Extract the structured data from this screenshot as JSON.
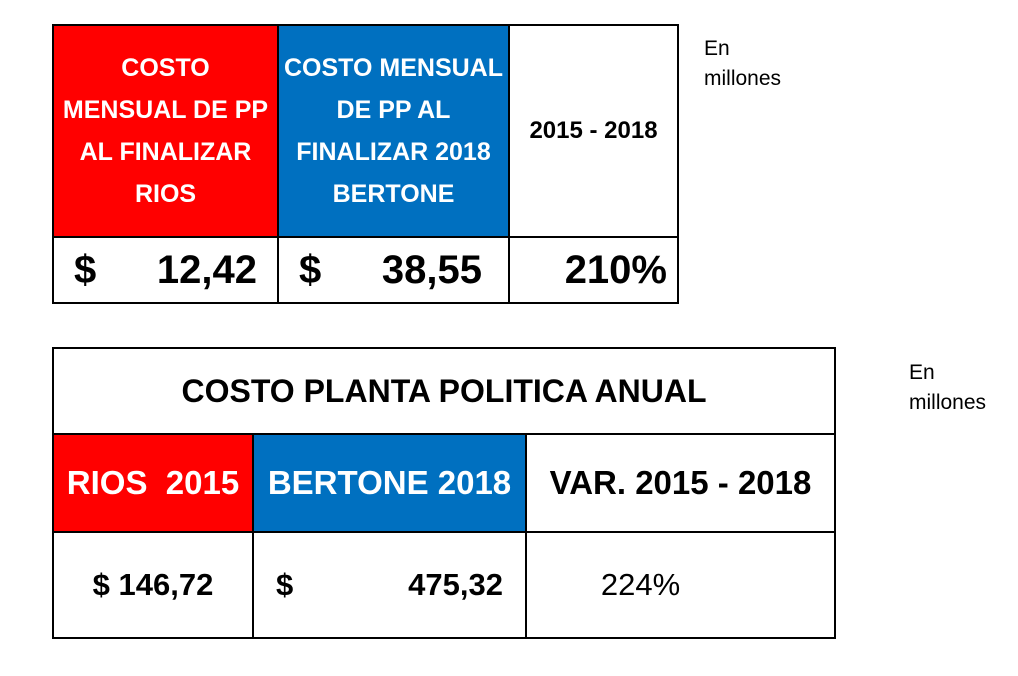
{
  "table1": {
    "header_rios": "COSTO MENSUAL DE PP AL FINALIZAR RIOS",
    "header_bertone": "COSTO MENSUAL DE PP AL FINALIZAR 2018 BERTONE",
    "header_period": "2015 - 2018",
    "currency": "$",
    "value_rios": "12,42",
    "value_bertone": "38,55",
    "variation": "210%"
  },
  "note1": {
    "line1": "En",
    "line2": "millones"
  },
  "table2": {
    "title": "COSTO PLANTA POLITICA ANUAL",
    "header_rios": "RIOS  2015",
    "header_bertone": "BERTONE 2018",
    "header_var": "VAR. 2015 - 2018",
    "currency": "$",
    "value_rios": "146,72",
    "value_bertone": "475,32",
    "variation": "224%"
  },
  "note2": {
    "line1": "En",
    "line2": "millones"
  },
  "colors": {
    "red": "#ff0000",
    "blue": "#0070c0"
  }
}
